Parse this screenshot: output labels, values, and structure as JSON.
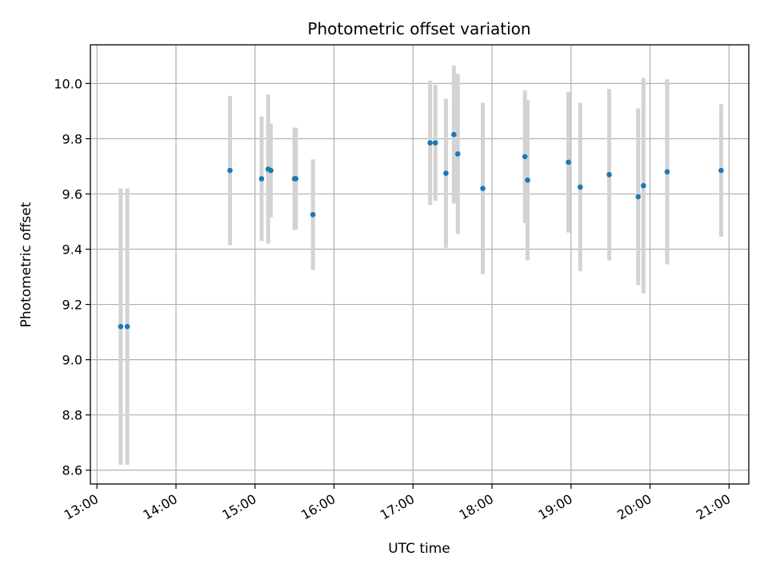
{
  "chart_data": {
    "type": "scatter",
    "title": "Photometric offset variation",
    "xlabel": "UTC time",
    "ylabel": "Photometric offset",
    "x_ticks": [
      "13:00",
      "14:00",
      "15:00",
      "16:00",
      "17:00",
      "18:00",
      "19:00",
      "20:00",
      "21:00"
    ],
    "y_ticks": [
      "8.6",
      "8.8",
      "9.0",
      "9.2",
      "9.4",
      "9.6",
      "9.8",
      "10.0"
    ],
    "xlim": [
      "12:55",
      "21:15"
    ],
    "ylim": [
      8.55,
      10.14
    ],
    "grid": true,
    "point_color": "#1f77b4",
    "errorbar_color": "#d3d3d3",
    "points": [
      {
        "x": "13:18",
        "y": 9.12,
        "err": 0.5
      },
      {
        "x": "13:23",
        "y": 9.12,
        "err": 0.5
      },
      {
        "x": "14:41",
        "y": 9.685,
        "err": 0.27
      },
      {
        "x": "15:05",
        "y": 9.655,
        "err": 0.225
      },
      {
        "x": "15:10",
        "y": 9.69,
        "err": 0.27
      },
      {
        "x": "15:12",
        "y": 9.685,
        "err": 0.17
      },
      {
        "x": "15:30",
        "y": 9.655,
        "err": 0.185
      },
      {
        "x": "15:31",
        "y": 9.655,
        "err": 0.185
      },
      {
        "x": "15:44",
        "y": 9.525,
        "err": 0.2
      },
      {
        "x": "17:13",
        "y": 9.785,
        "err": 0.225
      },
      {
        "x": "17:17",
        "y": 9.785,
        "err": 0.21
      },
      {
        "x": "17:25",
        "y": 9.675,
        "err": 0.27
      },
      {
        "x": "17:31",
        "y": 9.815,
        "err": 0.25
      },
      {
        "x": "17:34",
        "y": 9.745,
        "err": 0.29
      },
      {
        "x": "17:53",
        "y": 9.62,
        "err": 0.31
      },
      {
        "x": "18:25",
        "y": 9.735,
        "err": 0.24
      },
      {
        "x": "18:27",
        "y": 9.65,
        "err": 0.29
      },
      {
        "x": "18:58",
        "y": 9.715,
        "err": 0.255
      },
      {
        "x": "19:07",
        "y": 9.625,
        "err": 0.305
      },
      {
        "x": "19:29",
        "y": 9.67,
        "err": 0.31
      },
      {
        "x": "19:51",
        "y": 9.59,
        "err": 0.32
      },
      {
        "x": "19:55",
        "y": 9.63,
        "err": 0.39
      },
      {
        "x": "20:13",
        "y": 9.68,
        "err": 0.335
      },
      {
        "x": "20:54",
        "y": 9.685,
        "err": 0.24
      }
    ]
  }
}
